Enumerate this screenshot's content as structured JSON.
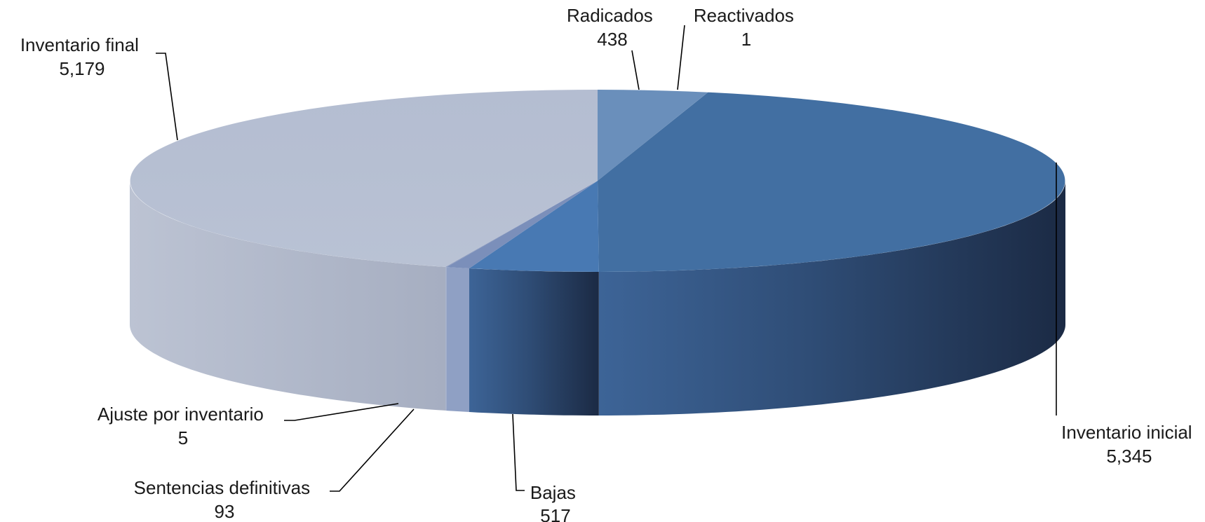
{
  "chart_data": {
    "type": "pie",
    "style": "3d",
    "slices": [
      {
        "key": "radicados",
        "label": "Radicados",
        "value": 438,
        "value_text": "438",
        "color": "#6a8fbb"
      },
      {
        "key": "reactivados",
        "label": "Reactivados",
        "value": 1,
        "value_text": "1",
        "color": "#5a7fb0"
      },
      {
        "key": "inventario_inicial",
        "label": "Inventario inicial",
        "value": 5345,
        "value_text": "5,345",
        "color": "#426fa2"
      },
      {
        "key": "bajas",
        "label": "Bajas",
        "value": 517,
        "value_text": "517",
        "color": "#4879b3"
      },
      {
        "key": "sentencias_definitivas",
        "label": "Sentencias definitivas",
        "value": 93,
        "value_text": "93",
        "color": "#7b8fba"
      },
      {
        "key": "ajuste_por_inventario",
        "label": "Ajuste por inventario",
        "value": 5,
        "value_text": "5",
        "color": "#8a99bd"
      },
      {
        "key": "inventario_final",
        "label": "Inventario final",
        "value": 5179,
        "value_text": "5,179",
        "color": "#b6bfd1"
      }
    ],
    "legend": "none",
    "data_labels": "outside-with-leader-lines"
  }
}
